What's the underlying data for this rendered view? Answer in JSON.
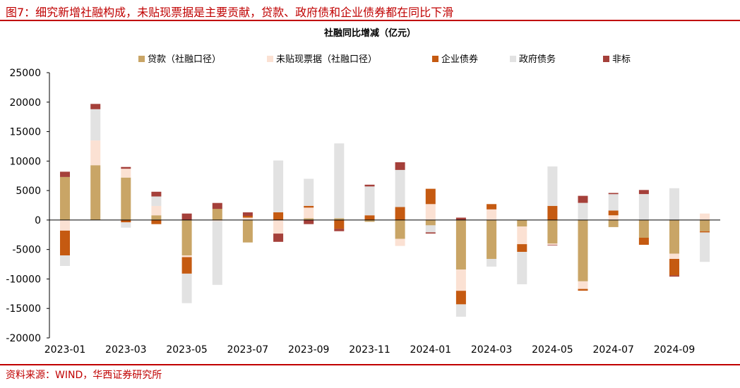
{
  "figure": {
    "title": "图7：细究新增社融构成，未贴现票据是主要贡献，贷款、政府债和企业债券都在同比下滑",
    "source": "资料来源：WIND，华西证券研究所"
  },
  "chart_data": {
    "type": "bar",
    "stacked": true,
    "title": "社融同比增减（亿元）",
    "xlabel": "",
    "ylabel": "",
    "ylim": [
      -20000,
      25000
    ],
    "yticks": [
      -20000,
      -15000,
      -10000,
      -5000,
      0,
      5000,
      10000,
      15000,
      20000,
      25000
    ],
    "grid": false,
    "legend_position": "top",
    "categories": [
      "2023-01",
      "2023-02",
      "2023-03",
      "2023-04",
      "2023-05",
      "2023-06",
      "2023-07",
      "2023-08",
      "2023-09",
      "2023-10",
      "2023-11",
      "2023-12",
      "2024-01",
      "2024-02",
      "2024-03",
      "2024-04",
      "2024-05",
      "2024-06",
      "2024-07",
      "2024-08",
      "2024-09",
      "2024-10"
    ],
    "x_tick_labels": [
      "2023-01",
      "",
      "2023-03",
      "",
      "2023-05",
      "",
      "2023-07",
      "",
      "2023-09",
      "",
      "2023-11",
      "",
      "2024-01",
      "",
      "2024-03",
      "",
      "2024-05",
      "",
      "2024-07",
      "",
      "2024-09",
      ""
    ],
    "series": [
      {
        "name": "贷款（社融口径）",
        "color": "#c9a566",
        "values": [
          7300,
          9300,
          7200,
          800,
          -6000,
          1900,
          -3800,
          0,
          300,
          300,
          -300,
          -3200,
          -900,
          -8400,
          -6600,
          -1100,
          -4000,
          -10400,
          -1200,
          -3000,
          -5700,
          -1900
        ]
      },
      {
        "name": "未贴现票据（社融口径）",
        "color": "#fbe1d3",
        "values": [
          -1800,
          4200,
          1500,
          1600,
          -300,
          -200,
          400,
          -2300,
          1800,
          0,
          0,
          -1200,
          2700,
          -3600,
          1800,
          -3000,
          -200,
          -1300,
          800,
          0,
          -900,
          1100
        ]
      },
      {
        "name": "企业债券",
        "color": "#c55a11",
        "values": [
          -4200,
          0,
          -400,
          -700,
          -2800,
          0,
          300,
          1300,
          300,
          -1500,
          800,
          2200,
          2600,
          -2300,
          900,
          -1300,
          2400,
          -300,
          800,
          -1200,
          -2800,
          -200
        ]
      },
      {
        "name": "政府债务",
        "color": "#e2e2e2",
        "values": [
          -1800,
          5300,
          -900,
          1600,
          -5000,
          -10800,
          0,
          8800,
          4600,
          12700,
          4900,
          6300,
          -1200,
          -2100,
          -1300,
          -5500,
          6700,
          2900,
          2800,
          4400,
          5400,
          -5000
        ]
      },
      {
        "name": "非标",
        "color": "#a5403a",
        "values": [
          900,
          900,
          300,
          800,
          1100,
          1000,
          600,
          -1400,
          -700,
          -400,
          300,
          1300,
          -200,
          400,
          0,
          0,
          -100,
          1200,
          200,
          700,
          -200,
          0
        ]
      }
    ]
  }
}
